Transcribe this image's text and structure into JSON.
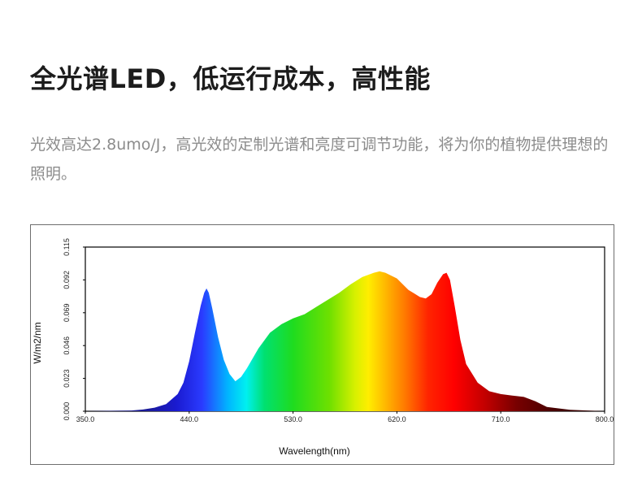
{
  "heading": "全光谱LED，低运行成本，高性能",
  "description": "光效高达2.8umo/J，高光效的定制光谱和亮度可调节功能，将为你的植物提供理想的照明。",
  "chart_data": {
    "type": "area",
    "title": "",
    "xlabel": "Wavelength(nm)",
    "ylabel": "W/m2/nm",
    "xlim": [
      350.0,
      800.0
    ],
    "ylim": [
      0.0,
      0.115
    ],
    "xticks": [
      "350.0",
      "440.0",
      "530.0",
      "620.0",
      "710.0",
      "800.0"
    ],
    "yticks": [
      "0.000",
      "0.023",
      "0.046",
      "0.069",
      "0.092",
      "0.115"
    ],
    "grid": false,
    "fill": "wavelength-rainbow",
    "series": [
      {
        "x": [
          350,
          390,
          400,
          410,
          420,
          430,
          435,
          440,
          445,
          450,
          453,
          455,
          457,
          460,
          465,
          470,
          475,
          480,
          485,
          490,
          495,
          500,
          510,
          520,
          530,
          540,
          550,
          560,
          570,
          580,
          590,
          600,
          605,
          610,
          620,
          630,
          640,
          645,
          650,
          655,
          660,
          663,
          666,
          670,
          675,
          680,
          690,
          700,
          710,
          720,
          730,
          740,
          750,
          770,
          800
        ],
        "values": [
          0.0,
          0.0005,
          0.0012,
          0.0025,
          0.005,
          0.012,
          0.02,
          0.035,
          0.055,
          0.074,
          0.083,
          0.086,
          0.083,
          0.072,
          0.052,
          0.036,
          0.026,
          0.021,
          0.024,
          0.03,
          0.037,
          0.044,
          0.055,
          0.061,
          0.065,
          0.068,
          0.073,
          0.078,
          0.083,
          0.089,
          0.094,
          0.097,
          0.098,
          0.097,
          0.093,
          0.085,
          0.08,
          0.079,
          0.082,
          0.09,
          0.096,
          0.097,
          0.092,
          0.074,
          0.05,
          0.033,
          0.02,
          0.014,
          0.012,
          0.011,
          0.01,
          0.007,
          0.003,
          0.001,
          0.0
        ]
      }
    ]
  }
}
